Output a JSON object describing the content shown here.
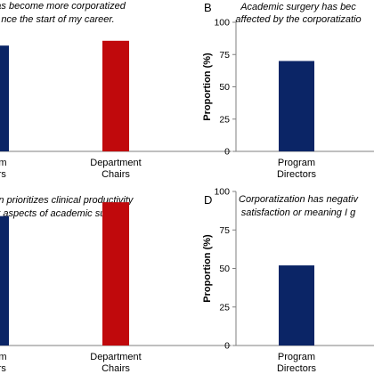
{
  "chart_data": [
    {
      "panel_letter": "",
      "type": "bar",
      "title_lines": [
        "has become more corporatized",
        "nce the start of my career."
      ],
      "ylabel": "",
      "ylim": [
        0,
        100
      ],
      "yticks": [],
      "categories": [
        "gram\nctors",
        "Department\nChairs"
      ],
      "values": [
        88,
        92
      ],
      "colors": [
        "#0b2566",
        "#c0090c"
      ]
    },
    {
      "panel_letter": "B",
      "type": "bar",
      "title_lines": [
        "Academic surgery has bec",
        "affected by the corporatizatio"
      ],
      "ylabel": "Proportion (%)",
      "ylim": [
        0,
        100
      ],
      "yticks": [
        0,
        25,
        50,
        75,
        100
      ],
      "categories": [
        "Program\nDirectors",
        ""
      ],
      "values": [
        70,
        0
      ],
      "colors": [
        "#0b2566",
        "#c0090c"
      ]
    },
    {
      "panel_letter": "",
      "type": "bar",
      "title_lines": [
        "ation prioritizes clinical productivity",
        "her aspects of academic surgery."
      ],
      "ylabel": "",
      "ylim": [
        0,
        100
      ],
      "yticks": [],
      "categories": [
        "gram\nctors",
        "Department\nChairs"
      ],
      "values": [
        84,
        93
      ],
      "colors": [
        "#0b2566",
        "#c0090c"
      ]
    },
    {
      "panel_letter": "D",
      "type": "bar",
      "title_lines": [
        "Corporatization has negativ",
        "satisfaction or meaning I g"
      ],
      "ylabel": "Proportion (%)",
      "ylim": [
        0,
        100
      ],
      "yticks": [
        0,
        25,
        50,
        75,
        100
      ],
      "categories": [
        "Program\nDirectors",
        ""
      ],
      "values": [
        52,
        0
      ],
      "colors": [
        "#0b2566",
        "#c0090c"
      ]
    }
  ]
}
